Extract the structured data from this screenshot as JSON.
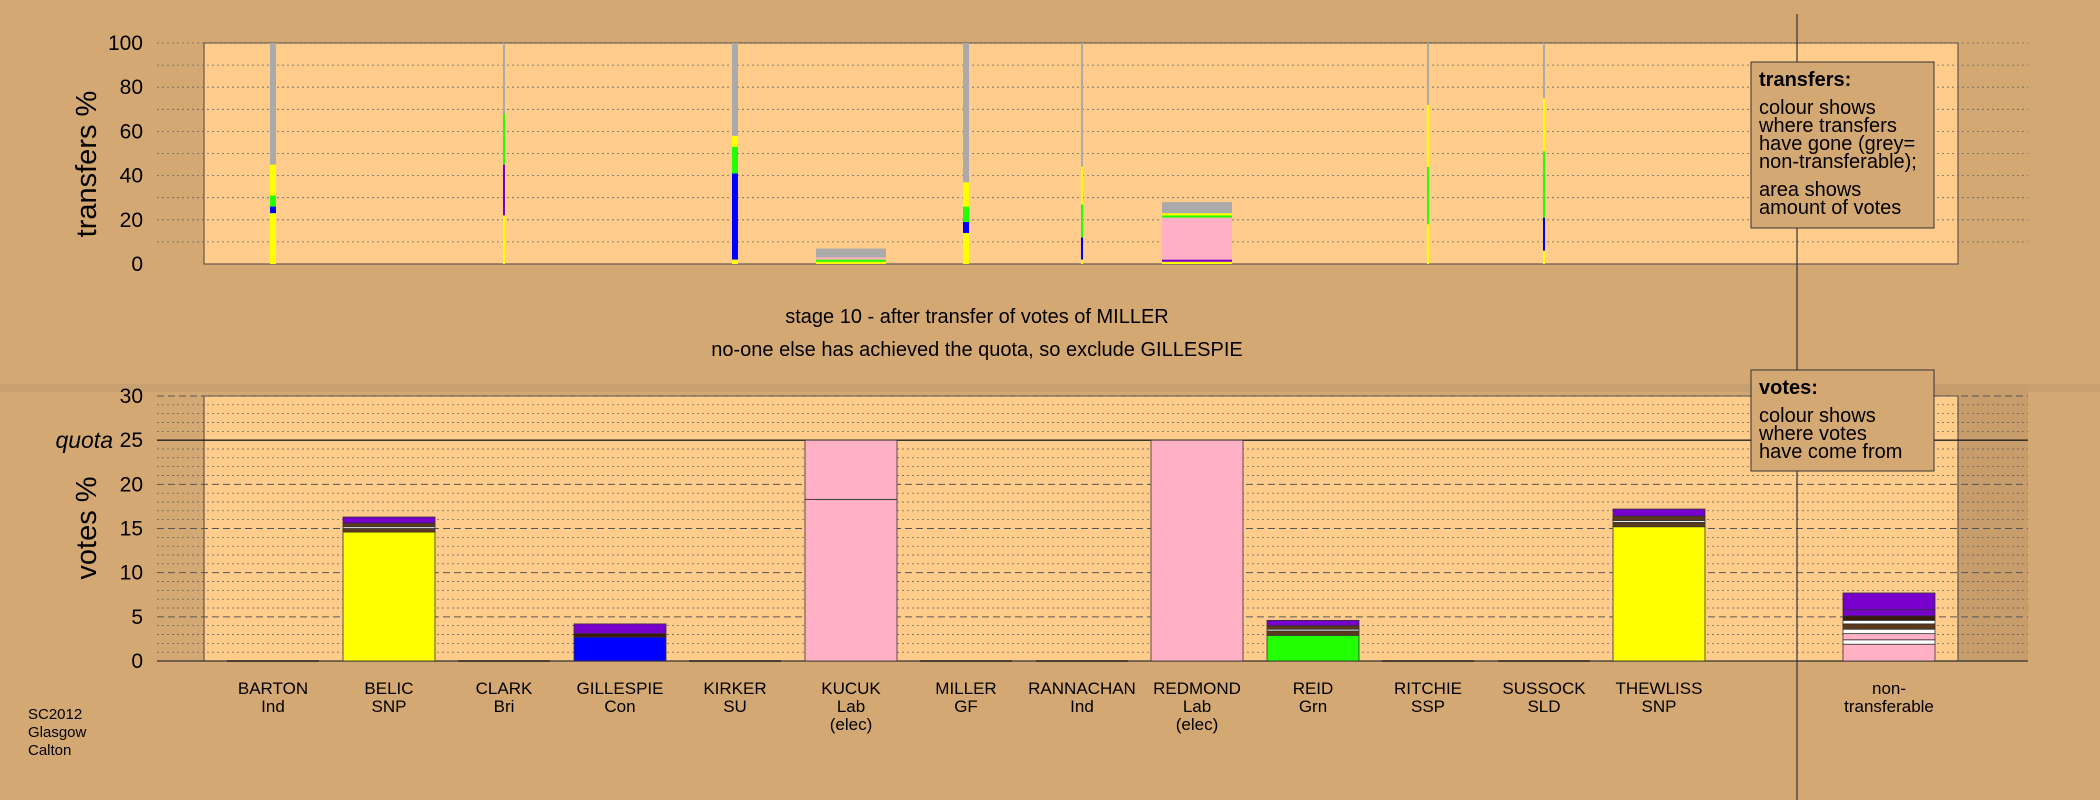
{
  "chart_data": {
    "type": "bar",
    "title": "stage 10 - after transfer of votes of MILLER",
    "subtitle": "no-one else has achieved the quota, so exclude GILLESPIE",
    "colors": {
      "background": "#d4a873",
      "plot_background": "#ffcc8c",
      "yellow": "#ffff00",
      "blue": "#0000ff",
      "green": "#22ff00",
      "purple": "#7700cc",
      "pink": "#ffb0c4",
      "grey": "#aaaaaa",
      "white": "#ffffff",
      "brown": "#5a3a1a",
      "dark_brown": "#3a1a0a"
    },
    "candidates": [
      {
        "name": "BARTON",
        "party": "Ind",
        "extra": ""
      },
      {
        "name": "BELIC",
        "party": "SNP",
        "extra": ""
      },
      {
        "name": "CLARK",
        "party": "Bri",
        "extra": ""
      },
      {
        "name": "GILLESPIE",
        "party": "Con",
        "extra": ""
      },
      {
        "name": "KIRKER",
        "party": "SU",
        "extra": ""
      },
      {
        "name": "KUCUK",
        "party": "Lab",
        "extra": "(elec)"
      },
      {
        "name": "MILLER",
        "party": "GF",
        "extra": ""
      },
      {
        "name": "RANNACHAN",
        "party": "Ind",
        "extra": ""
      },
      {
        "name": "REDMOND",
        "party": "Lab",
        "extra": "(elec)"
      },
      {
        "name": "REID",
        "party": "Grn",
        "extra": ""
      },
      {
        "name": "RITCHIE",
        "party": "SSP",
        "extra": ""
      },
      {
        "name": "SUSSOCK",
        "party": "SLD",
        "extra": ""
      },
      {
        "name": "THEWLISS",
        "party": "SNP",
        "extra": ""
      }
    ],
    "nontransferable_label": [
      "non-",
      "transferable"
    ],
    "transfers_panel": {
      "ylabel": "transfers %",
      "ylim": [
        0,
        100
      ],
      "yticks": [
        0,
        20,
        40,
        60,
        80,
        100
      ],
      "bars": [
        {
          "candidate": "BARTON",
          "width": "thin",
          "segments": [
            {
              "color": "yellow",
              "from": 0,
              "to": 23
            },
            {
              "color": "blue",
              "from": 23,
              "to": 26
            },
            {
              "color": "green",
              "from": 26,
              "to": 31
            },
            {
              "color": "yellow",
              "from": 31,
              "to": 45
            },
            {
              "color": "grey",
              "from": 45,
              "to": 100
            }
          ]
        },
        {
          "candidate": "CLARK",
          "width": "hair",
          "segments": [
            {
              "color": "yellow",
              "from": 0,
              "to": 22
            },
            {
              "color": "purple",
              "from": 22,
              "to": 45
            },
            {
              "color": "green",
              "from": 45,
              "to": 68
            },
            {
              "color": "grey",
              "from": 68,
              "to": 100
            }
          ]
        },
        {
          "candidate": "KIRKER",
          "width": "thin",
          "segments": [
            {
              "color": "yellow",
              "from": 0,
              "to": 2
            },
            {
              "color": "blue",
              "from": 2,
              "to": 41
            },
            {
              "color": "green",
              "from": 41,
              "to": 53
            },
            {
              "color": "yellow",
              "from": 53,
              "to": 58
            },
            {
              "color": "grey",
              "from": 58,
              "to": 100
            }
          ]
        },
        {
          "candidate": "KUCUK",
          "width": "wide",
          "segments": [
            {
              "color": "yellow",
              "from": 0,
              "to": 1
            },
            {
              "color": "green",
              "from": 1,
              "to": 2
            },
            {
              "color": "pink",
              "from": 2,
              "to": 3
            },
            {
              "color": "grey",
              "from": 3,
              "to": 7
            }
          ]
        },
        {
          "candidate": "MILLER",
          "width": "thin",
          "segments": [
            {
              "color": "yellow",
              "from": 0,
              "to": 14
            },
            {
              "color": "blue",
              "from": 14,
              "to": 19
            },
            {
              "color": "green",
              "from": 19,
              "to": 26
            },
            {
              "color": "yellow",
              "from": 26,
              "to": 37
            },
            {
              "color": "grey",
              "from": 37,
              "to": 100
            }
          ]
        },
        {
          "candidate": "RANNACHAN",
          "width": "hair",
          "segments": [
            {
              "color": "yellow",
              "from": 0,
              "to": 2
            },
            {
              "color": "blue",
              "from": 2,
              "to": 12
            },
            {
              "color": "green",
              "from": 12,
              "to": 27
            },
            {
              "color": "yellow",
              "from": 27,
              "to": 44
            },
            {
              "color": "grey",
              "from": 44,
              "to": 100
            }
          ]
        },
        {
          "candidate": "REDMOND",
          "width": "wide",
          "segments": [
            {
              "color": "yellow",
              "from": 0,
              "to": 1
            },
            {
              "color": "purple",
              "from": 1,
              "to": 2
            },
            {
              "color": "pink",
              "from": 2,
              "to": 21
            },
            {
              "color": "green",
              "from": 21,
              "to": 22
            },
            {
              "color": "yellow",
              "from": 22,
              "to": 23
            },
            {
              "color": "grey",
              "from": 23,
              "to": 28
            }
          ]
        },
        {
          "candidate": "RITCHIE",
          "width": "hair",
          "segments": [
            {
              "color": "yellow",
              "from": 0,
              "to": 18
            },
            {
              "color": "green",
              "from": 18,
              "to": 44
            },
            {
              "color": "yellow",
              "from": 44,
              "to": 72
            },
            {
              "color": "grey",
              "from": 72,
              "to": 100
            }
          ]
        },
        {
          "candidate": "SUSSOCK",
          "width": "hair",
          "segments": [
            {
              "color": "yellow",
              "from": 0,
              "to": 6
            },
            {
              "color": "blue",
              "from": 6,
              "to": 21
            },
            {
              "color": "green",
              "from": 21,
              "to": 51
            },
            {
              "color": "yellow",
              "from": 51,
              "to": 75
            },
            {
              "color": "grey",
              "from": 75,
              "to": 100
            }
          ]
        }
      ]
    },
    "votes_panel": {
      "ylabel": "votes %",
      "ylim": [
        0,
        30
      ],
      "yticks": [
        0,
        5,
        10,
        15,
        20,
        25,
        30
      ],
      "quota": 25,
      "quota_label": "quota",
      "bars": [
        {
          "candidate": "BARTON",
          "segments": []
        },
        {
          "candidate": "BELIC",
          "segments": [
            {
              "color": "yellow",
              "from": 0,
              "to": 14.6
            },
            {
              "color": "brown",
              "from": 14.6,
              "to": 15.0
            },
            {
              "color": "white",
              "from": 15.0,
              "to": 15.2
            },
            {
              "color": "brown",
              "from": 15.2,
              "to": 15.6
            },
            {
              "color": "purple",
              "from": 15.6,
              "to": 16.3
            }
          ]
        },
        {
          "candidate": "CLARK",
          "segments": []
        },
        {
          "candidate": "GILLESPIE",
          "segments": [
            {
              "color": "blue",
              "from": 0,
              "to": 2.7
            },
            {
              "color": "dark_brown",
              "from": 2.7,
              "to": 3.1
            },
            {
              "color": "purple",
              "from": 3.1,
              "to": 4.2
            }
          ]
        },
        {
          "candidate": "KIRKER",
          "segments": []
        },
        {
          "candidate": "KUCUK",
          "segments": [
            {
              "color": "pink",
              "from": 0,
              "to": 18.3
            },
            {
              "color": "pink",
              "from": 18.3,
              "to": 25
            }
          ]
        },
        {
          "candidate": "MILLER",
          "segments": []
        },
        {
          "candidate": "RANNACHAN",
          "segments": []
        },
        {
          "candidate": "REDMOND",
          "segments": [
            {
              "color": "pink",
              "from": 0,
              "to": 25
            }
          ]
        },
        {
          "candidate": "REID",
          "segments": [
            {
              "color": "green",
              "from": 0,
              "to": 2.9
            },
            {
              "color": "brown",
              "from": 2.9,
              "to": 3.4
            },
            {
              "color": "white",
              "from": 3.4,
              "to": 3.6
            },
            {
              "color": "brown",
              "from": 3.6,
              "to": 4.0
            },
            {
              "color": "purple",
              "from": 4.0,
              "to": 4.6
            }
          ]
        },
        {
          "candidate": "RITCHIE",
          "segments": []
        },
        {
          "candidate": "SUSSOCK",
          "segments": []
        },
        {
          "candidate": "THEWLISS",
          "segments": [
            {
              "color": "yellow",
              "from": 0,
              "to": 15.2
            },
            {
              "color": "brown",
              "from": 15.2,
              "to": 15.7
            },
            {
              "color": "white",
              "from": 15.7,
              "to": 15.9
            },
            {
              "color": "brown",
              "from": 15.9,
              "to": 16.4
            },
            {
              "color": "purple",
              "from": 16.4,
              "to": 17.2
            }
          ]
        },
        {
          "candidate": "non-transferable",
          "segments": [
            {
              "color": "pink",
              "from": 0,
              "to": 1.9
            },
            {
              "color": "white",
              "from": 1.9,
              "to": 2.4
            },
            {
              "color": "pink",
              "from": 2.4,
              "to": 3.1
            },
            {
              "color": "white",
              "from": 3.1,
              "to": 3.6
            },
            {
              "color": "brown",
              "from": 3.6,
              "to": 4.2
            },
            {
              "color": "white",
              "from": 4.2,
              "to": 4.6
            },
            {
              "color": "dark_brown",
              "from": 4.6,
              "to": 5.1
            },
            {
              "color": "purple",
              "from": 5.1,
              "to": 5.8
            },
            {
              "color": "purple",
              "from": 5.8,
              "to": 7.7
            }
          ]
        }
      ]
    },
    "legend_transfers": {
      "title": "transfers:",
      "lines": [
        "colour shows",
        "where transfers",
        "have gone (grey=",
        "non-transferable);",
        "",
        "area shows",
        "amount of votes"
      ]
    },
    "legend_votes": {
      "title": "votes:",
      "lines": [
        "colour shows",
        "where votes",
        "have come from"
      ]
    },
    "footnote": [
      "SC2012",
      "Glasgow",
      "Calton"
    ]
  }
}
